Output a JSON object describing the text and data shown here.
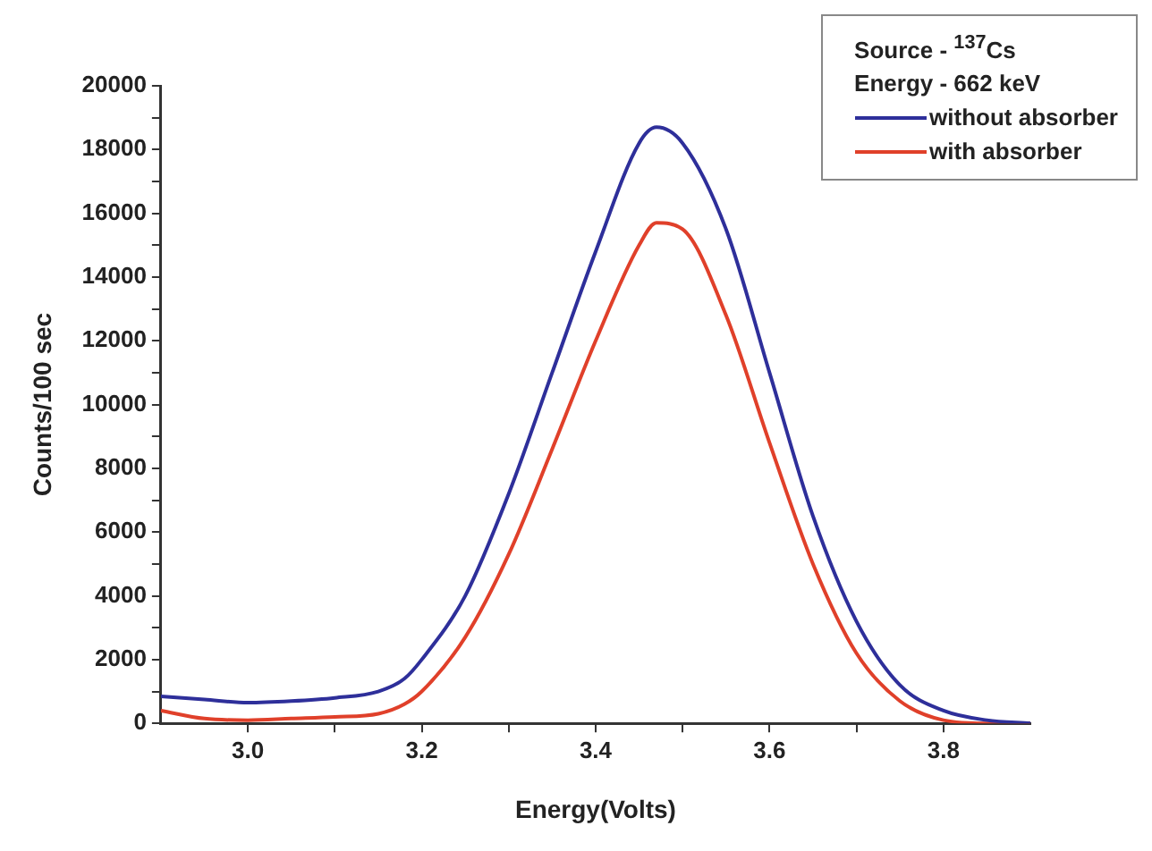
{
  "chart_data": {
    "type": "line",
    "xlabel": "Energy(Volts)",
    "ylabel": "Counts/100 sec",
    "legend_title": "Source - $^{137}$Cs\nEnergy - 662 keV",
    "legend": "top right",
    "grid": false,
    "marker": "none",
    "line_style": "solid",
    "xlim": [
      2.9,
      3.9
    ],
    "xticks": [
      {
        "value": 3.0,
        "label": "3.0"
      },
      {
        "value": 3.1,
        "label": null
      },
      {
        "value": 3.2,
        "label": "3.2"
      },
      {
        "value": 3.3,
        "label": null
      },
      {
        "value": 3.4,
        "label": "3.4"
      },
      {
        "value": 3.5,
        "label": null
      },
      {
        "value": 3.6,
        "label": "3.6"
      },
      {
        "value": 3.7,
        "label": null
      },
      {
        "value": 3.8,
        "label": "3.8"
      }
    ],
    "ylim": [
      0,
      20000
    ],
    "yticks": [
      0,
      {
        "value": 1000,
        "label": null
      },
      2000,
      {
        "value": 3000,
        "label": null
      },
      4000,
      {
        "value": 5000,
        "label": null
      },
      6000,
      {
        "value": 7000,
        "label": null
      },
      8000,
      {
        "value": 9000,
        "label": null
      },
      10000,
      {
        "value": 11000,
        "label": null
      },
      12000,
      {
        "value": 13000,
        "label": null
      },
      14000,
      {
        "value": 15000,
        "label": null
      },
      16000,
      {
        "value": 17000,
        "label": null
      },
      18000,
      {
        "value": 19000,
        "label": null
      },
      20000
    ],
    "x": [
      2.9,
      2.95,
      3.0,
      3.05,
      3.1,
      3.15,
      3.18,
      3.2,
      3.25,
      3.3,
      3.35,
      3.4,
      3.45,
      3.47,
      3.5,
      3.55,
      3.6,
      3.65,
      3.7,
      3.75,
      3.8,
      3.85,
      3.9
    ],
    "series": [
      {
        "name": "without absorber",
        "color": "#2e2f9a",
        "values": [
          850,
          750,
          650,
          700,
          800,
          1000,
          1400,
          2000,
          4000,
          7200,
          11000,
          14800,
          18200,
          18700,
          18200,
          15500,
          11000,
          6500,
          3200,
          1200,
          400,
          100,
          0
        ]
      },
      {
        "name": "with absorber",
        "color": "#e0402a",
        "values": [
          400,
          150,
          100,
          150,
          200,
          300,
          600,
          1000,
          2700,
          5300,
          8600,
          12000,
          15000,
          15700,
          15500,
          12800,
          8800,
          5000,
          2200,
          700,
          100,
          0,
          0
        ]
      }
    ]
  }
}
